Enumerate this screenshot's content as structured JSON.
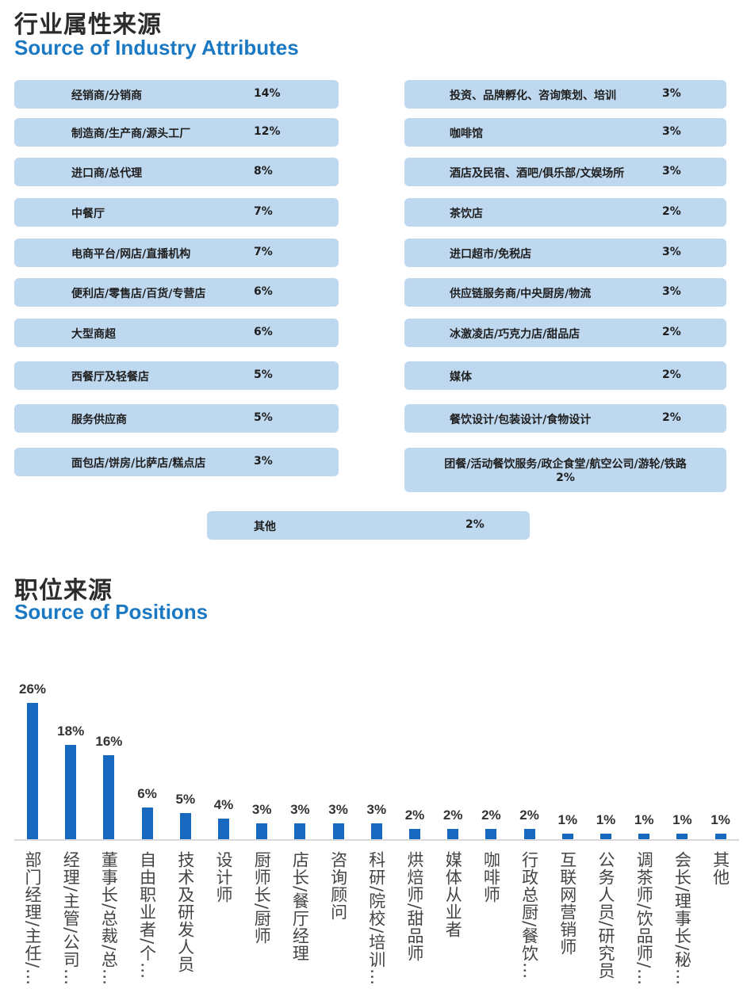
{
  "industry": {
    "title_cn": "行业属性来源",
    "title_en": "Source of Industry Attributes",
    "left": [
      {
        "label": "经销商/分销商",
        "pct": "14%"
      },
      {
        "label": "制造商/生产商/源头工厂",
        "pct": "12%"
      },
      {
        "label": "进口商/总代理",
        "pct": "8%"
      },
      {
        "label": "中餐厅",
        "pct": "7%"
      },
      {
        "label": "电商平台/网店/直播机构",
        "pct": "7%"
      },
      {
        "label": "便利店/零售店/百货/专营店",
        "pct": "6%"
      },
      {
        "label": "大型商超",
        "pct": "6%"
      },
      {
        "label": "西餐厅及轻餐店",
        "pct": "5%"
      },
      {
        "label": "服务供应商",
        "pct": "5%"
      },
      {
        "label": "面包店/饼房/比萨店/糕点店",
        "pct": "3%"
      }
    ],
    "right": [
      {
        "label": "投资、品牌孵化、咨询策划、培训",
        "pct": "3%"
      },
      {
        "label": "咖啡馆",
        "pct": "3%"
      },
      {
        "label": "酒店及民宿、酒吧/俱乐部/文娱场所",
        "pct": "3%"
      },
      {
        "label": "茶饮店",
        "pct": "2%"
      },
      {
        "label": "进口超市/免税店",
        "pct": "3%"
      },
      {
        "label": "供应链服务商/中央厨房/物流",
        "pct": "3%"
      },
      {
        "label": "冰激凌店/巧克力店/甜品店",
        "pct": "2%"
      },
      {
        "label": "媒体",
        "pct": "2%"
      },
      {
        "label": "餐饮设计/包装设计/食物设计",
        "pct": "2%"
      },
      {
        "label": "团餐/活动餐饮服务/政企食堂/航空公司/游轮/铁路",
        "pct": "2%"
      }
    ],
    "other": {
      "label": "其他",
      "pct": "2%"
    },
    "card_color": "#bed8ef"
  },
  "positions": {
    "title_cn": "职位来源",
    "title_en": "Source of Positions"
  },
  "chart_data": {
    "type": "bar",
    "bar_color": "#1769c0",
    "categories": [
      "部门经理/主任/…",
      "经理/主管/公司…",
      "董事长/总裁/总…",
      "自由职业者/个…",
      "技术及研发人员",
      "设计师",
      "厨师长/厨师",
      "店长/餐厅经理",
      "咨询顾问",
      "科研/院校/培训…",
      "烘焙师/甜品师",
      "媒体从业者",
      "咖啡师",
      "行政总厨/餐饮…",
      "互联网营销师",
      "公务人员/研究员",
      "调茶师/饮品师/…",
      "会长/理事长/秘…",
      "其他"
    ],
    "values": [
      26,
      18,
      16,
      6,
      5,
      4,
      3,
      3,
      3,
      3,
      2,
      2,
      2,
      2,
      1,
      1,
      1,
      1,
      1
    ],
    "data_labels": [
      "26%",
      "18%",
      "16%",
      "6%",
      "5%",
      "4%",
      "3%",
      "3%",
      "3%",
      "3%",
      "2%",
      "2%",
      "2%",
      "2%",
      "1%",
      "1%",
      "1%",
      "1%",
      "1%"
    ],
    "ylim": [
      0,
      26
    ],
    "grid": false,
    "legend": "none"
  }
}
